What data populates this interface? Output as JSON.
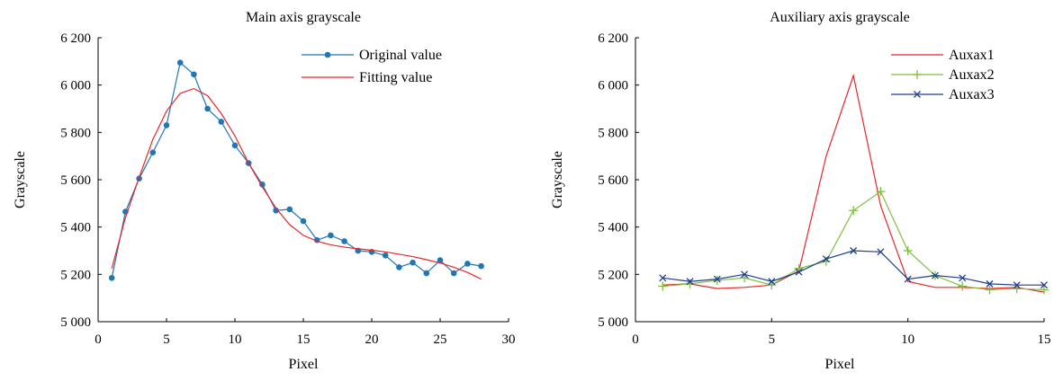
{
  "chart_data": [
    {
      "type": "line",
      "title": "Main axis grayscale",
      "xlabel": "Pixel",
      "ylabel": "Grayscale",
      "xlim": [
        0,
        30
      ],
      "ylim": [
        5000,
        6200
      ],
      "xticks": [
        0,
        5,
        10,
        15,
        20,
        25,
        30
      ],
      "yticks": [
        5000,
        5200,
        5400,
        5600,
        5800,
        6000,
        6200
      ],
      "xtick_labels": [
        "0",
        "5",
        "10",
        "15",
        "20",
        "25",
        "30"
      ],
      "ytick_labels": [
        "5 000",
        "5 200",
        "5 400",
        "5 600",
        "5 800",
        "6 000",
        "6 200"
      ],
      "grid": false,
      "legend_position": "top-right",
      "series": [
        {
          "name": "Original value",
          "color": "#1f77b4",
          "marker": "dot",
          "x": [
            1,
            2,
            3,
            4,
            5,
            6,
            7,
            8,
            9,
            10,
            11,
            12,
            13,
            14,
            15,
            16,
            17,
            18,
            19,
            20,
            21,
            22,
            23,
            24,
            25,
            26,
            27,
            28
          ],
          "y": [
            5185,
            5465,
            5605,
            5715,
            5830,
            6095,
            6045,
            5900,
            5845,
            5745,
            5670,
            5580,
            5470,
            5475,
            5425,
            5345,
            5365,
            5340,
            5300,
            5295,
            5280,
            5230,
            5250,
            5205,
            5260,
            5205,
            5245,
            5235
          ]
        },
        {
          "name": "Fitting value",
          "color": "#e8262a",
          "marker": "none",
          "x": [
            1,
            2,
            3,
            4,
            5,
            6,
            7,
            8,
            9,
            10,
            11,
            12,
            13,
            14,
            15,
            16,
            17,
            18,
            19,
            20,
            21,
            22,
            23,
            24,
            25,
            26,
            27,
            28
          ],
          "y": [
            5225,
            5440,
            5610,
            5770,
            5890,
            5965,
            5985,
            5955,
            5880,
            5785,
            5670,
            5570,
            5480,
            5410,
            5365,
            5340,
            5325,
            5315,
            5308,
            5302,
            5295,
            5285,
            5275,
            5262,
            5248,
            5230,
            5208,
            5180
          ]
        }
      ]
    },
    {
      "type": "line",
      "title": "Auxiliary axis grayscale",
      "xlabel": "Pixel",
      "ylabel": "Grayscale",
      "xlim": [
        0,
        15
      ],
      "ylim": [
        5000,
        6200
      ],
      "xticks": [
        0,
        5,
        10,
        15
      ],
      "yticks": [
        5000,
        5200,
        5400,
        5600,
        5800,
        6000,
        6200
      ],
      "xtick_labels": [
        "0",
        "5",
        "10",
        "15"
      ],
      "ytick_labels": [
        "5 000",
        "5 200",
        "5 400",
        "5 600",
        "5 800",
        "6 000",
        "6 200"
      ],
      "grid": false,
      "legend_position": "top-right",
      "series": [
        {
          "name": "Auxax1",
          "color": "#e8262a",
          "marker": "none",
          "x": [
            1,
            2,
            3,
            4,
            5,
            6,
            7,
            8,
            9,
            10,
            11,
            12,
            13,
            14,
            15
          ],
          "y": [
            5155,
            5160,
            5140,
            5145,
            5155,
            5215,
            5700,
            6040,
            5490,
            5170,
            5145,
            5145,
            5140,
            5145,
            5125
          ]
        },
        {
          "name": "Auxax2",
          "color": "#7fbf3f",
          "marker": "plus",
          "x": [
            1,
            2,
            3,
            4,
            5,
            6,
            7,
            8,
            9,
            10,
            11,
            12,
            13,
            14,
            15
          ],
          "y": [
            5150,
            5160,
            5175,
            5185,
            5155,
            5225,
            5255,
            5470,
            5550,
            5300,
            5195,
            5150,
            5135,
            5140,
            5135
          ]
        },
        {
          "name": "Auxax3",
          "color": "#1f3f8f",
          "marker": "x",
          "x": [
            1,
            2,
            3,
            4,
            5,
            6,
            7,
            8,
            9,
            10,
            11,
            12,
            13,
            14,
            15
          ],
          "y": [
            5185,
            5170,
            5180,
            5200,
            5170,
            5210,
            5265,
            5300,
            5295,
            5180,
            5195,
            5185,
            5160,
            5155,
            5155
          ]
        }
      ]
    }
  ]
}
